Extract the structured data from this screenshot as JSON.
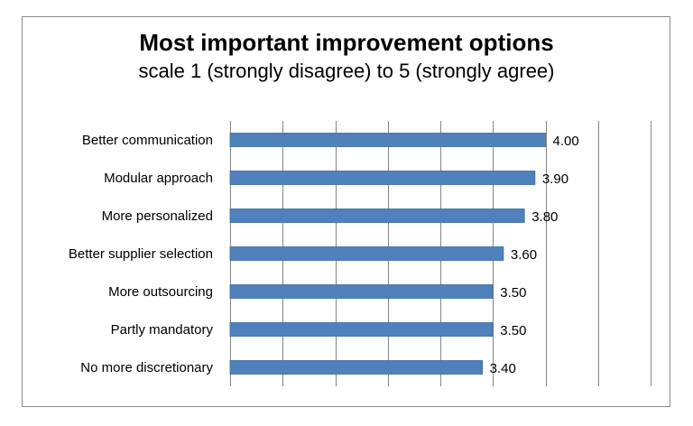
{
  "chart_data": {
    "type": "bar",
    "orientation": "horizontal",
    "title": "Most important improvement options",
    "subtitle": "scale 1 (strongly disagree) to 5 (strongly agree)",
    "categories": [
      "Better communication",
      "Modular approach",
      "More personalized",
      "Better supplier selection",
      "More outsourcing",
      "Partly mandatory",
      "No more discretionary"
    ],
    "values": [
      4.0,
      3.9,
      3.8,
      3.6,
      3.5,
      3.5,
      3.4
    ],
    "value_labels": [
      "4.00",
      "3.90",
      "3.80",
      "3.60",
      "3.50",
      "3.50",
      "3.40"
    ],
    "xlim": [
      1,
      5
    ],
    "x_gridlines": true,
    "x_tick_labels_shown": false,
    "legend": "none",
    "bar_color": "#4f81bd",
    "bar_edge_color": "#3a6aa3",
    "grid_color": "#868686"
  }
}
